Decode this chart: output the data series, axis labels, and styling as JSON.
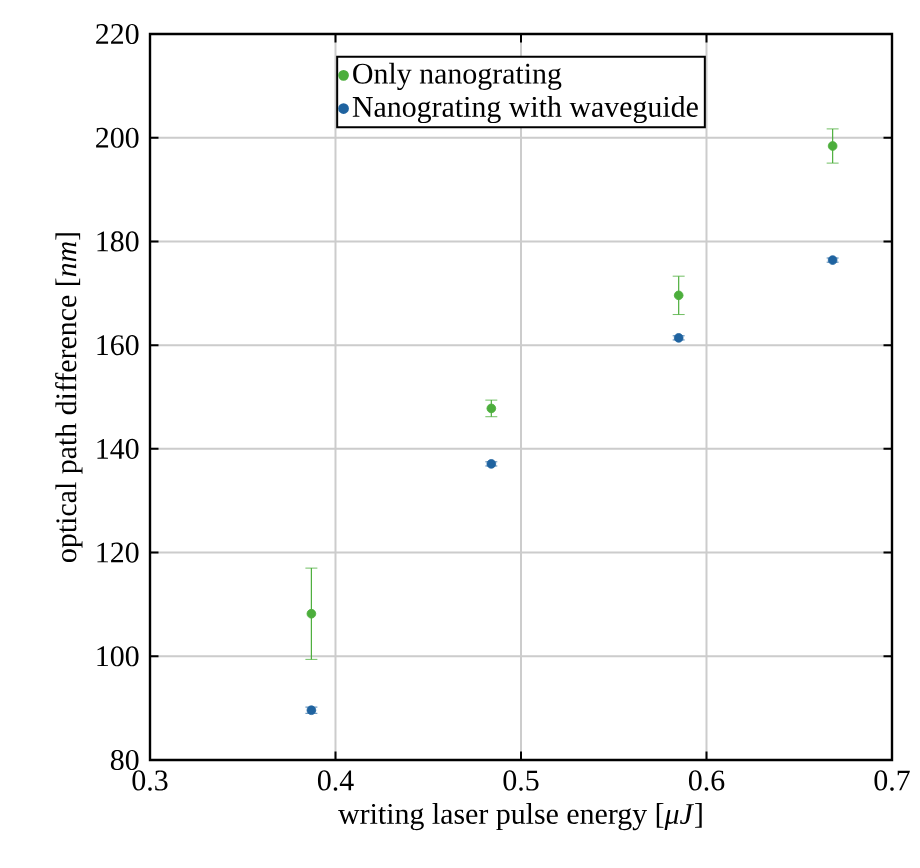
{
  "chart_data": {
    "type": "scatter",
    "xlabel": "writing laser pulse energy [*μJ*]",
    "ylabel": "optical path difference [*nm*]",
    "xlim": [
      0.3,
      0.7
    ],
    "xticks": [
      0.3,
      0.4,
      0.5,
      0.6,
      0.7
    ],
    "ylim": [
      80,
      220
    ],
    "yticks": [
      80,
      100,
      120,
      140,
      160,
      180,
      200,
      220
    ],
    "grid": true,
    "legend": "top",
    "series": [
      {
        "name": "Only nanograting",
        "color": "#4cae3c",
        "x": [
          0.387,
          0.484,
          0.585,
          0.668
        ],
        "values": [
          108.2,
          147.8,
          169.6,
          198.4
        ],
        "errors": [
          8.8,
          1.6,
          3.7,
          3.3
        ]
      },
      {
        "name": "Nanograting with waveguide",
        "color": "#1f63a0",
        "x": [
          0.387,
          0.484,
          0.585,
          0.668
        ],
        "values": [
          89.6,
          137.1,
          161.4,
          176.4
        ],
        "errors": [
          0.6,
          0.4,
          0.4,
          0.4
        ]
      }
    ]
  }
}
